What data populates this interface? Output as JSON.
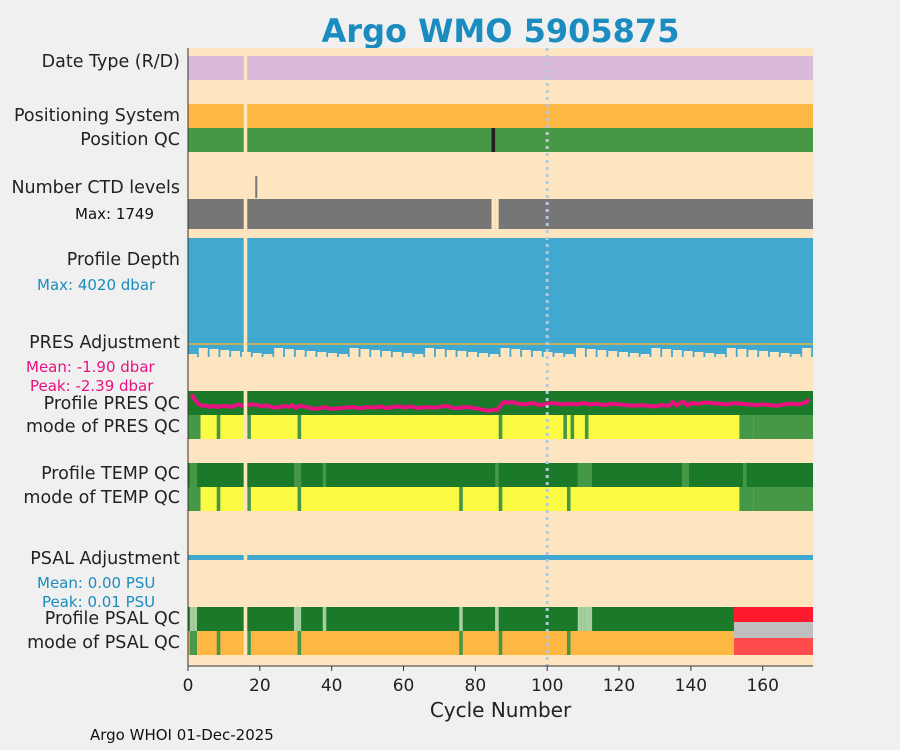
{
  "title": "Argo WMO 5905875",
  "footer": "Argo WHOI 01-Dec-2025",
  "colors": {
    "background": "#fce5bf",
    "date_type": "#dbb9db",
    "positioning": "#fdb743",
    "qc_good": "#479846",
    "qc_dark_good": "#1a7a2a",
    "qc_yellow": "#fbfb46",
    "qc_bad_red": "#ff1a2e",
    "qc_bad_light_red": "#ff4b4b",
    "qc_grey": "#bfbfbf",
    "ctd": "#767676",
    "profile_depth": "#41a8cf",
    "pres_line": "#e8117f",
    "title": "#1a8cbf",
    "annotation_blue": "#1a8cbf",
    "annotation_magenta": "#e8117f"
  },
  "labels": {
    "date_type": "Date Type (R/D)",
    "positioning_system": "Positioning System",
    "position_qc": "Position QC",
    "number_ctd_levels": "Number CTD levels",
    "ctd_max": "Max: 1749",
    "profile_depth": "Profile Depth",
    "depth_max": "Max: 4020 dbar",
    "pres_adjustment": "PRES Adjustment",
    "pres_mean": "Mean: -1.90 dbar",
    "pres_peak": "Peak: -2.39 dbar",
    "profile_pres_qc": "Profile PRES QC",
    "mode_pres_qc": "mode of PRES QC",
    "profile_temp_qc": "Profile TEMP QC",
    "mode_temp_qc": "mode of TEMP QC",
    "psal_adjustment": "PSAL Adjustment",
    "psal_mean": "Mean: 0.00 PSU",
    "psal_peak": "Peak: 0.01 PSU",
    "profile_psal_qc": "Profile PSAL QC",
    "mode_psal_qc": "mode of PSAL QC"
  },
  "chart_data": {
    "type": "bar",
    "xlabel": "Cycle Number",
    "xlim": [
      0,
      174
    ],
    "xticks": [
      0,
      20,
      40,
      60,
      80,
      100,
      120,
      140,
      160
    ],
    "missing_cycles": [
      16
    ],
    "highlight_cycle": 100,
    "ctd_levels": {
      "max": 1749,
      "missing_cycles": [
        85,
        86
      ],
      "spike_cycle": 19
    },
    "position_qc": {
      "bad_cycles": [
        85
      ]
    },
    "profile_depth": {
      "max_dbar": 4020,
      "typical_dbar": 3950
    },
    "pres_adjustment": {
      "mean_dbar": -1.9,
      "peak_dbar": -2.39,
      "x": [
        1,
        2,
        3,
        4,
        5,
        6,
        7,
        8,
        10,
        12,
        14,
        15,
        18,
        20,
        21,
        22,
        23,
        25,
        27,
        28,
        29,
        30,
        31,
        33,
        35,
        37,
        38,
        40,
        42,
        44,
        46,
        48,
        50,
        52,
        54,
        55,
        57,
        59,
        60,
        62,
        64,
        66,
        68,
        70,
        72,
        74,
        76,
        78,
        80,
        82,
        83,
        84,
        85,
        86,
        87,
        88,
        89,
        90,
        92,
        94,
        96,
        98,
        100,
        102,
        104,
        106,
        108,
        110,
        112,
        114,
        116,
        118,
        120,
        122,
        124,
        126,
        128,
        130,
        132,
        134,
        135,
        136,
        137,
        138,
        139,
        140,
        142,
        144,
        146,
        148,
        150,
        152,
        154,
        156,
        158,
        160,
        162,
        164,
        166,
        168,
        170,
        172,
        173
      ],
      "values": [
        -1.0,
        -1.5,
        -1.8,
        -1.9,
        -1.9,
        -2.0,
        -1.9,
        -2.0,
        -1.9,
        -2.0,
        -1.8,
        -1.9,
        -1.8,
        -1.9,
        -1.95,
        -1.85,
        -2.0,
        -2.05,
        -1.9,
        -2.0,
        -1.85,
        -2.1,
        -1.9,
        -2.0,
        -2.15,
        -2.1,
        -2.0,
        -2.15,
        -2.1,
        -2.05,
        -2.0,
        -2.1,
        -2.0,
        -2.05,
        -1.95,
        -2.1,
        -2.0,
        -1.95,
        -2.05,
        -1.95,
        -2.1,
        -2.0,
        -2.05,
        -2.0,
        -1.9,
        -2.1,
        -2.05,
        -2.0,
        -2.1,
        -2.2,
        -2.25,
        -2.3,
        -2.2,
        -2.25,
        -1.9,
        -1.6,
        -1.7,
        -1.6,
        -1.75,
        -1.8,
        -1.7,
        -1.85,
        -1.75,
        -1.7,
        -1.8,
        -1.75,
        -1.8,
        -1.7,
        -1.8,
        -1.75,
        -1.85,
        -1.75,
        -1.8,
        -1.85,
        -1.9,
        -1.85,
        -1.9,
        -1.95,
        -1.85,
        -1.9,
        -1.6,
        -1.9,
        -1.7,
        -1.6,
        -1.9,
        -1.7,
        -1.75,
        -1.65,
        -1.7,
        -1.75,
        -1.8,
        -1.7,
        -1.75,
        -1.8,
        -1.85,
        -1.8,
        -1.85,
        -1.9,
        -1.8,
        -1.75,
        -1.8,
        -1.65,
        -1.4
      ]
    },
    "psal_adjustment": {
      "mean_psu": 0.0,
      "peak_psu": 0.01
    },
    "profile_pres_qc": {
      "segments": [
        {
          "start": 0,
          "end": 174,
          "color": "qc_dark_good"
        }
      ]
    },
    "mode_pres_qc": {
      "segments": [
        {
          "start": 0,
          "end": 3.5,
          "color": "qc_good"
        },
        {
          "start": 3.5,
          "end": 153.5,
          "color": "qc_yellow"
        },
        {
          "start": 153.5,
          "end": 157.5,
          "color": "qc_good"
        },
        {
          "start": 157.5,
          "end": 174,
          "color": "qc_good"
        }
      ],
      "dark_marks": [
        1,
        2,
        8.5,
        17,
        31,
        87,
        105,
        107,
        111,
        155
      ]
    },
    "profile_temp_qc": {
      "dark_marks": [
        1,
        2,
        30,
        31,
        38,
        86,
        109,
        110,
        111,
        112,
        138,
        139,
        155
      ]
    },
    "mode_temp_qc": {
      "segments": [
        {
          "start": 0,
          "end": 3.5,
          "color": "qc_good"
        },
        {
          "start": 3.5,
          "end": 153.5,
          "color": "qc_yellow"
        },
        {
          "start": 153.5,
          "end": 157.5,
          "color": "qc_good"
        },
        {
          "start": 157.5,
          "end": 174,
          "color": "qc_good"
        }
      ],
      "dark_marks": [
        1,
        2,
        8.5,
        17,
        31,
        76,
        87,
        106,
        155
      ]
    },
    "profile_psal_qc": {
      "segments": [
        {
          "start": 0,
          "end": 152,
          "color": "qc_dark_good"
        },
        {
          "start": 152,
          "end": 174,
          "color": "qc_bad_red"
        }
      ],
      "grey_marks": [
        1,
        2,
        30,
        31,
        38,
        76,
        86,
        109,
        110,
        111,
        112
      ]
    },
    "mode_psal_qc": {
      "segments": [
        {
          "start": 0,
          "end": 152,
          "color": "positioning"
        },
        {
          "start": 152,
          "end": 174,
          "color": "qc_bad_light_red"
        }
      ],
      "grey_band": {
        "start": 152,
        "end": 174
      },
      "dark_marks": [
        1,
        2,
        8.5,
        17,
        31,
        76,
        87,
        106
      ]
    }
  }
}
